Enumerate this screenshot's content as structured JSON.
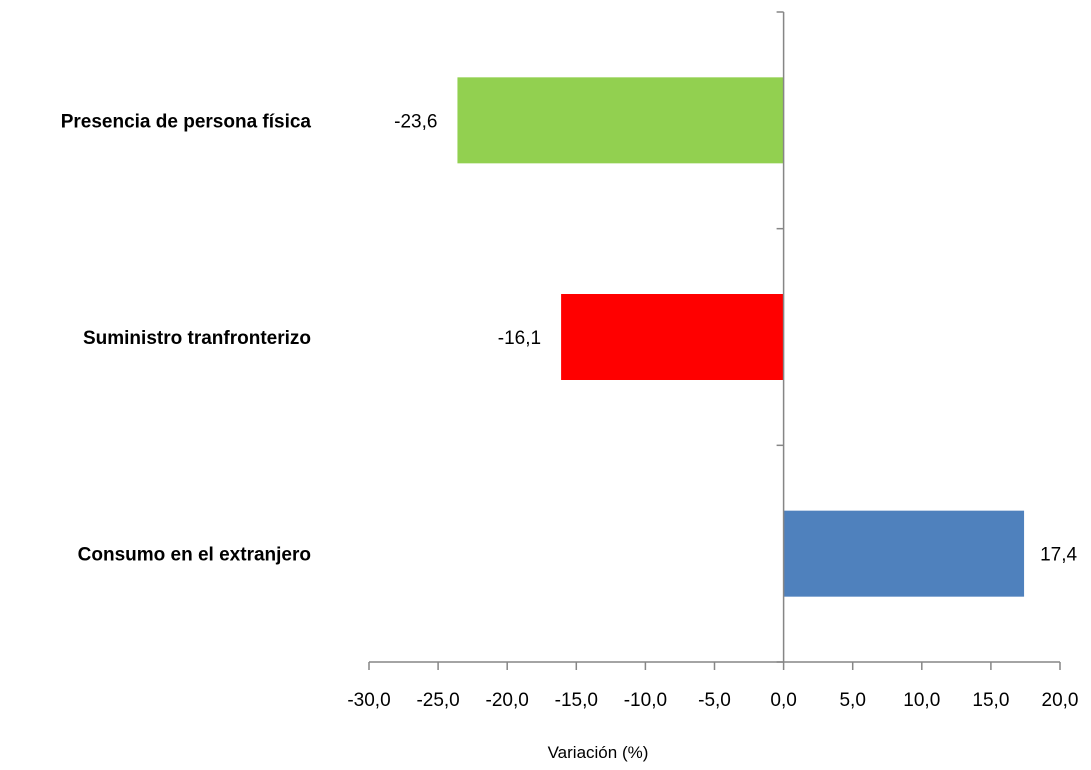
{
  "chart_data": {
    "type": "bar",
    "orientation": "horizontal",
    "categories": [
      "Presencia de persona física",
      "Suministro tranfronterizo",
      "Consumo en el extranjero"
    ],
    "values": [
      -23.6,
      -16.1,
      17.4
    ],
    "data_labels": [
      "-23,6",
      "-16,1",
      "17,4"
    ],
    "colors": [
      "#92D050",
      "#FF0000",
      "#4F81BD"
    ],
    "title": "",
    "xlabel": "Variación (%)",
    "ylabel": "",
    "xlim": [
      -30,
      20
    ],
    "x_ticks": [
      -30,
      -25,
      -20,
      -15,
      -10,
      -5,
      0,
      5,
      10,
      15,
      20
    ],
    "x_tick_labels": [
      "-30,0",
      "-25,0",
      "-20,0",
      "-15,0",
      "-10,0",
      "-5,0",
      "0,0",
      "5,0",
      "10,0",
      "15,0",
      "20,0"
    ],
    "grid": false,
    "legend": "none",
    "axis_color": "#868686"
  }
}
